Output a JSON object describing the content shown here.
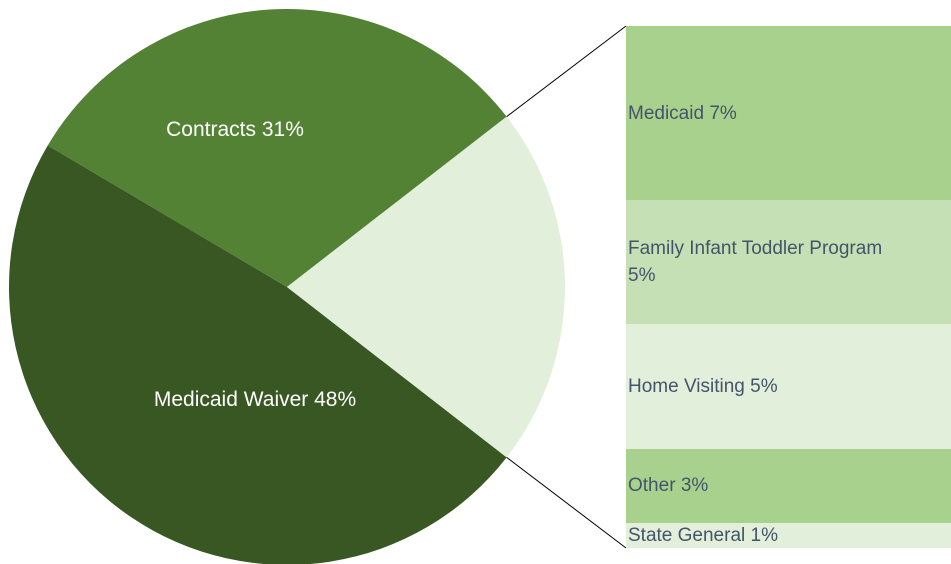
{
  "chart_data": {
    "type": "bar-of-pie",
    "categories": [
      "Contracts",
      "Medicaid Waiver"
    ],
    "values": [
      31,
      48
    ],
    "value_labels": [
      "31%",
      "48%"
    ],
    "colors": [
      "#548235",
      "#385723"
    ],
    "other_color": "#e2efda",
    "breakdown": {
      "categories": [
        "Medicaid",
        "Family Infant Toddler Program",
        "Home Visiting",
        "Other",
        "State General"
      ],
      "values": [
        7,
        5,
        5,
        3,
        1
      ],
      "value_labels": [
        "7%",
        "5%",
        "5%",
        "3%",
        "1%"
      ],
      "colors": [
        "#a9d18e",
        "#c5e0b4",
        "#e2efda",
        "#a9d18e",
        "#e2efda"
      ]
    }
  }
}
